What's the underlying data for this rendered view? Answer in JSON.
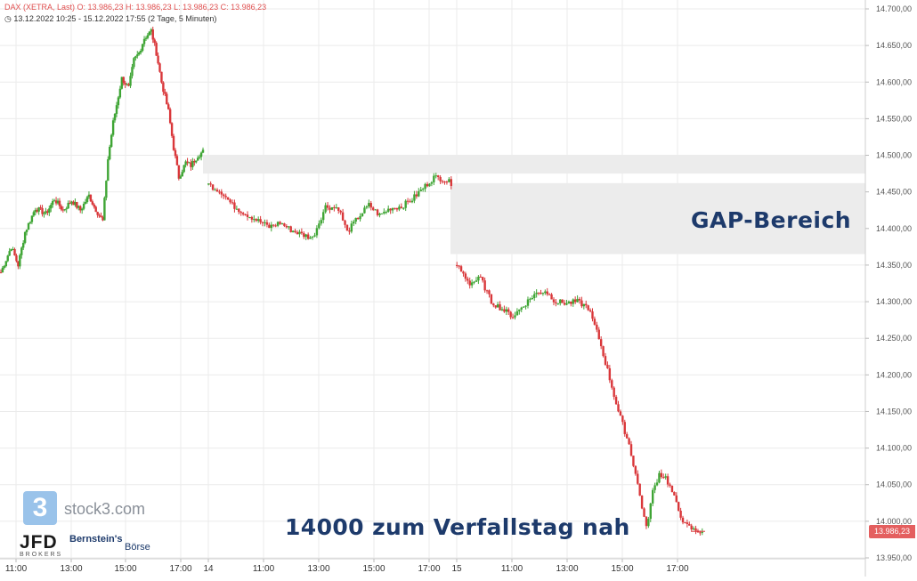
{
  "header": {
    "line1": "DAX (XETRA, Last)  O: 13.986,23  H: 13.986,23  L: 13.986,23  C: 13.986,23",
    "line2": "13.12.2022 10:25 - 15.12.2022 17:55   (2 Tage, 5 Minuten)"
  },
  "annotations": {
    "gap_label": "GAP-Bereich",
    "note": "14000 zum Verfallstag nah"
  },
  "last_price_label": "13.986,23",
  "branding": {
    "stock3_glyph": "3",
    "stock3": "stock3.com",
    "jfd": "JFD",
    "jfd_sub": "BROKERS",
    "bernstein": "Bernstein's",
    "boerse": "Börse"
  },
  "colors": {
    "up": "#3fa535",
    "down": "#d9373a",
    "gap_zone": "#ececec",
    "grid": "#ebebeb",
    "annotation_text": "#1d3a6b",
    "price_tag": "#e45f5f"
  },
  "chart_data": {
    "type": "candlestick",
    "title": "DAX (XETRA, Last)",
    "interval": "5 Minuten",
    "ylim": [
      13930,
      14710
    ],
    "y_ticks": [
      14700,
      14650,
      14600,
      14550,
      14500,
      14450,
      14400,
      14350,
      14300,
      14250,
      14200,
      14150,
      14100,
      14050,
      14000,
      13950
    ],
    "y_tick_labels": [
      "14.700,00",
      "14.650,00",
      "14.600,00",
      "14.550,00",
      "14.500,00",
      "14.450,00",
      "14.400,00",
      "14.350,00",
      "14.300,00",
      "14.250,00",
      "14.200,00",
      "14.150,00",
      "14.100,00",
      "14.050,00",
      "14.000,00",
      "13.950,00"
    ],
    "x_tick_labels": [
      "11:00",
      "13:00",
      "15:00",
      "17:00",
      "14",
      "11:00",
      "13:00",
      "15:00",
      "17:00",
      "15",
      "11:00",
      "13:00",
      "15:00",
      "17:00"
    ],
    "gap_zones": [
      [
        14475,
        14500
      ],
      [
        14365,
        14462
      ]
    ],
    "sessions": [
      {
        "label": "13.12.2022",
        "path": [
          [
            0,
            14340
          ],
          [
            6,
            14375
          ],
          [
            10,
            14350
          ],
          [
            14,
            14395
          ],
          [
            20,
            14428
          ],
          [
            26,
            14420
          ],
          [
            31,
            14440
          ],
          [
            36,
            14425
          ],
          [
            41,
            14438
          ],
          [
            46,
            14425
          ],
          [
            51,
            14445
          ],
          [
            54,
            14430
          ],
          [
            59,
            14410
          ],
          [
            62,
            14495
          ],
          [
            65,
            14545
          ],
          [
            70,
            14605
          ],
          [
            74,
            14592
          ],
          [
            77,
            14630
          ],
          [
            80,
            14640
          ],
          [
            83,
            14660
          ],
          [
            87,
            14670
          ],
          [
            90,
            14640
          ],
          [
            93,
            14600
          ],
          [
            97,
            14560
          ],
          [
            100,
            14510
          ],
          [
            103,
            14470
          ],
          [
            107,
            14490
          ],
          [
            110,
            14486
          ],
          [
            114,
            14500
          ],
          [
            117,
            14505
          ]
        ]
      },
      {
        "label": "14.12.2022",
        "path": [
          [
            0,
            14460
          ],
          [
            6,
            14450
          ],
          [
            11,
            14432
          ],
          [
            16,
            14422
          ],
          [
            22,
            14412
          ],
          [
            28,
            14402
          ],
          [
            33,
            14408
          ],
          [
            38,
            14398
          ],
          [
            43,
            14392
          ],
          [
            48,
            14387
          ],
          [
            54,
            14430
          ],
          [
            60,
            14428
          ],
          [
            64,
            14395
          ],
          [
            69,
            14415
          ],
          [
            74,
            14432
          ],
          [
            79,
            14418
          ],
          [
            84,
            14428
          ],
          [
            89,
            14430
          ],
          [
            94,
            14440
          ],
          [
            99,
            14455
          ],
          [
            104,
            14470
          ],
          [
            108,
            14468
          ],
          [
            112,
            14462
          ]
        ]
      },
      {
        "label": "15.12.2022",
        "path": [
          [
            0,
            14350
          ],
          [
            6,
            14325
          ],
          [
            11,
            14332
          ],
          [
            16,
            14300
          ],
          [
            21,
            14290
          ],
          [
            26,
            14280
          ],
          [
            31,
            14295
          ],
          [
            36,
            14310
          ],
          [
            41,
            14315
          ],
          [
            46,
            14300
          ],
          [
            51,
            14298
          ],
          [
            56,
            14300
          ],
          [
            61,
            14292
          ],
          [
            66,
            14250
          ],
          [
            71,
            14195
          ],
          [
            75,
            14150
          ],
          [
            80,
            14105
          ],
          [
            83,
            14065
          ],
          [
            86,
            14020
          ],
          [
            88,
            13990
          ],
          [
            91,
            14040
          ],
          [
            94,
            14065
          ],
          [
            97,
            14060
          ],
          [
            100,
            14040
          ],
          [
            103,
            14015
          ],
          [
            106,
            13995
          ],
          [
            110,
            13988
          ],
          [
            114,
            13986
          ]
        ]
      }
    ],
    "last_value": 13986.23
  }
}
